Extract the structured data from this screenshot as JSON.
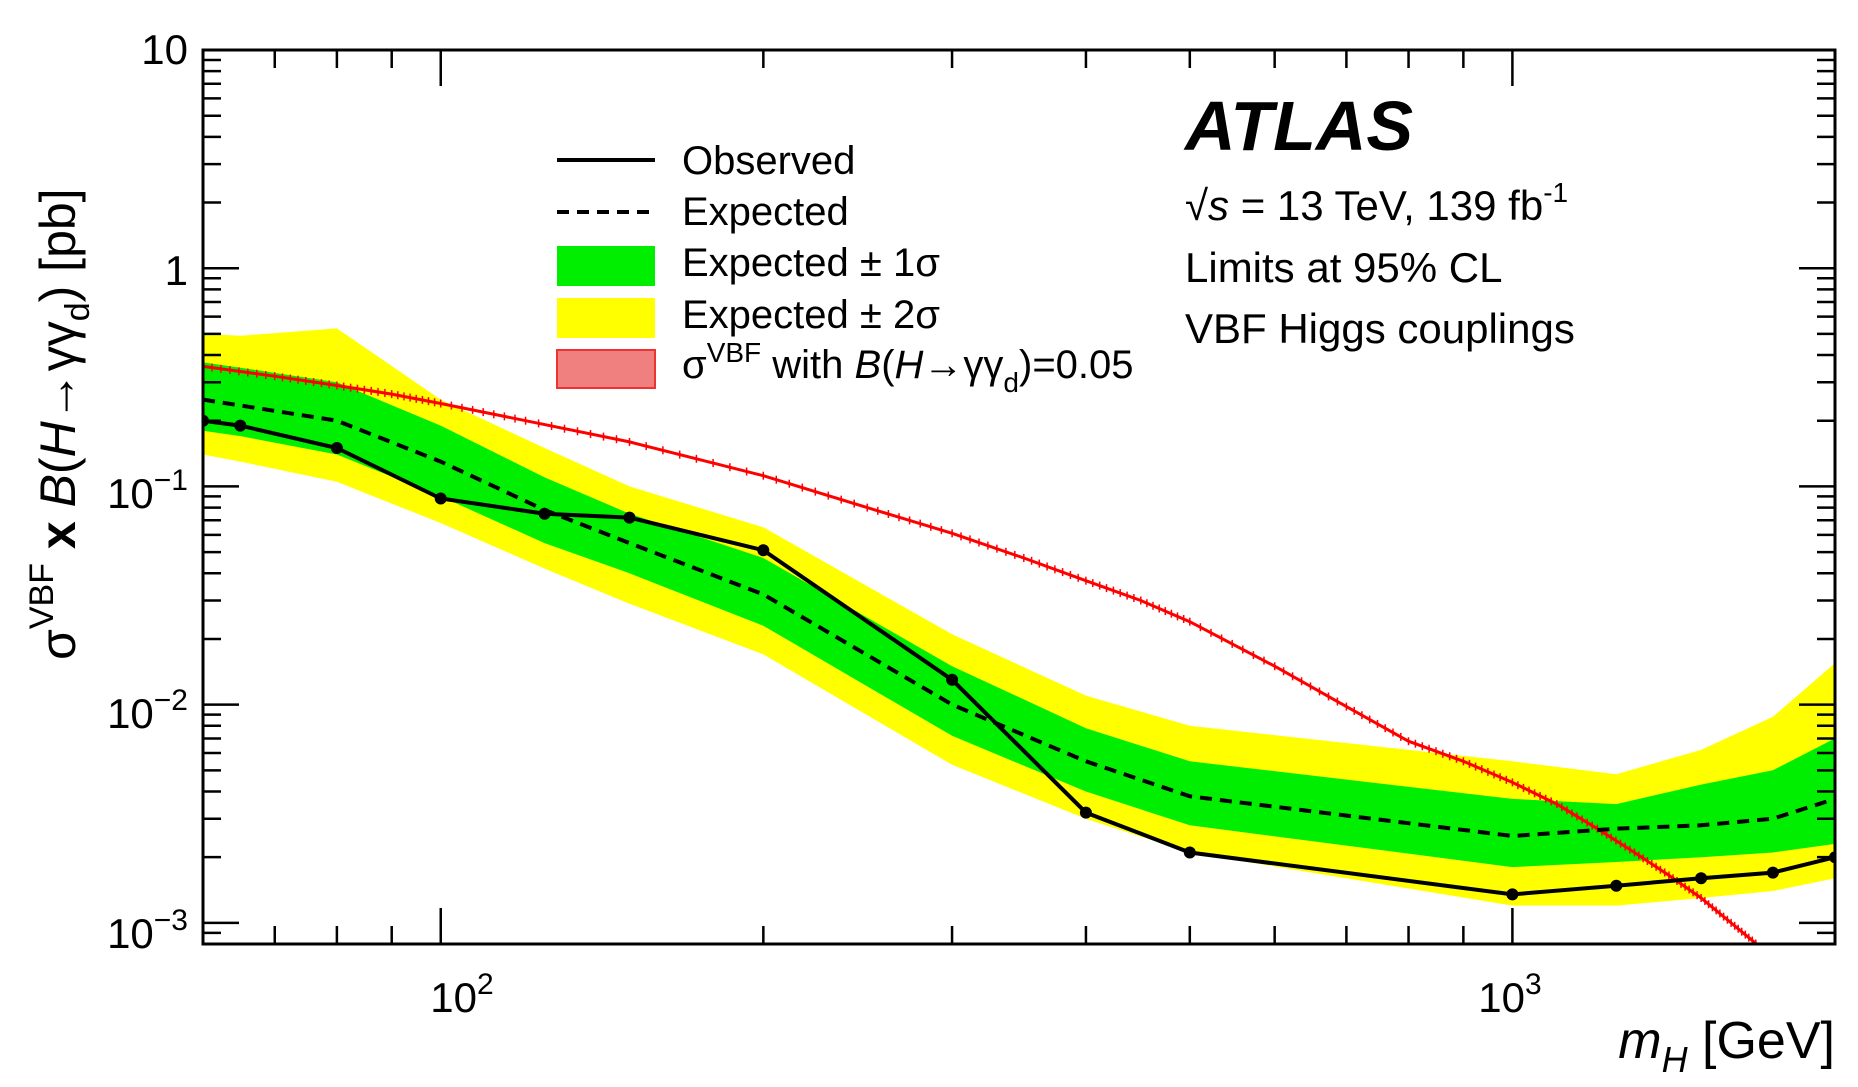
{
  "chart_data": {
    "type": "line",
    "title": "",
    "experiment": "ATLAS",
    "info_lines": {
      "energy_prefix": "√s",
      "energy_text": " = 13 TeV, 139 fb",
      "energy_exp": "-1",
      "line2": "Limits at 95% CL",
      "line3": "VBF Higgs couplings"
    },
    "xlabel": {
      "sym": "m",
      "sub": "H",
      "unit": " [GeV]"
    },
    "ylabel": {
      "sigma": "σ",
      "sup": "VBF",
      "times": " x ",
      "b": "B",
      "paren_open": "(",
      "h": "H",
      "arrow": "→γγ",
      "sub": "d",
      "paren_close": ")",
      "unit": " [pb]"
    },
    "x_scale": "log",
    "y_scale": "log",
    "xlim": [
      60,
      2000
    ],
    "ylim": [
      0.0008,
      10
    ],
    "x_ticks": [
      {
        "value": 100,
        "base": "10",
        "exp": "2"
      },
      {
        "value": 1000,
        "base": "10",
        "exp": "3"
      }
    ],
    "y_ticks": [
      {
        "value": 10,
        "label": "10",
        "exp": ""
      },
      {
        "value": 1,
        "label": "1",
        "exp": ""
      },
      {
        "value": 0.1,
        "label": "10",
        "exp": "−1"
      },
      {
        "value": 0.01,
        "label": "10",
        "exp": "−2"
      },
      {
        "value": 0.001,
        "label": "10",
        "exp": "−3"
      }
    ],
    "legend": {
      "placement": "top-center",
      "entries": [
        {
          "key": "observed",
          "label": "Observed"
        },
        {
          "key": "expected",
          "label": "Expected"
        },
        {
          "key": "band1",
          "label": "Expected ± 1σ"
        },
        {
          "key": "band2",
          "label": "Expected ± 2σ"
        },
        {
          "key": "theory",
          "label_sigma": "σ",
          "label_sup": "VBF",
          "label_mid": " with ",
          "label_b": "B",
          "label_paren": "(",
          "label_h": "H",
          "label_arrow": "→γγ",
          "label_sub": "d",
          "label_end": ")=0.05"
        }
      ]
    },
    "colors": {
      "observed": "#000000",
      "expected": "#000000",
      "band1": "#00ee00",
      "band2": "#ffff00",
      "theory": "#ff0000"
    },
    "series": [
      {
        "name": "Observed",
        "x": [
          60,
          65,
          80,
          100,
          125,
          150,
          200,
          300,
          400,
          500,
          1000,
          1250,
          1500,
          1750,
          2000
        ],
        "y": [
          0.2,
          0.19,
          0.15,
          0.088,
          0.075,
          0.072,
          0.051,
          0.013,
          0.0032,
          0.0021,
          0.00135,
          0.00148,
          0.0016,
          0.0017,
          0.002
        ]
      },
      {
        "name": "Expected",
        "x": [
          60,
          80,
          100,
          125,
          150,
          200,
          300,
          400,
          500,
          1000,
          1250,
          1500,
          1750,
          2000
        ],
        "y": [
          0.25,
          0.2,
          0.13,
          0.078,
          0.055,
          0.032,
          0.01,
          0.0055,
          0.0038,
          0.0025,
          0.0027,
          0.0028,
          0.003,
          0.0037
        ]
      }
    ],
    "bands": [
      {
        "name": "Expected ± 2σ",
        "x": [
          60,
          65,
          80,
          100,
          125,
          150,
          200,
          300,
          400,
          500,
          1000,
          1250,
          1500,
          1750,
          2000
        ],
        "upper": [
          0.5,
          0.49,
          0.53,
          0.25,
          0.15,
          0.1,
          0.065,
          0.021,
          0.011,
          0.008,
          0.0055,
          0.0048,
          0.0062,
          0.0088,
          0.0155
        ],
        "lower": [
          0.14,
          0.13,
          0.105,
          0.068,
          0.042,
          0.029,
          0.017,
          0.0053,
          0.003,
          0.0021,
          0.0012,
          0.0012,
          0.0013,
          0.0014,
          0.0016
        ]
      },
      {
        "name": "Expected ± 1σ",
        "x": [
          60,
          65,
          80,
          100,
          125,
          150,
          200,
          300,
          400,
          500,
          1000,
          1250,
          1500,
          1750,
          2000
        ],
        "upper": [
          0.37,
          0.35,
          0.3,
          0.19,
          0.11,
          0.075,
          0.047,
          0.015,
          0.0078,
          0.0055,
          0.0037,
          0.0035,
          0.0043,
          0.005,
          0.007
        ],
        "lower": [
          0.18,
          0.17,
          0.14,
          0.09,
          0.055,
          0.04,
          0.023,
          0.0072,
          0.004,
          0.0028,
          0.0018,
          0.0019,
          0.002,
          0.0021,
          0.0023
        ]
      }
    ],
    "theory_curve": {
      "name": "σ(VBF) with B(H→γγd)=0.05",
      "x": [
        60,
        70,
        80,
        90,
        100,
        120,
        150,
        200,
        250,
        300,
        350,
        400,
        450,
        500,
        600,
        700,
        800,
        900,
        1000,
        1100,
        1200,
        1300,
        1400,
        1500,
        1600,
        1700
      ],
      "y": [
        0.355,
        0.32,
        0.29,
        0.265,
        0.24,
        0.2,
        0.16,
        0.112,
        0.08,
        0.061,
        0.047,
        0.037,
        0.03,
        0.024,
        0.015,
        0.0098,
        0.0068,
        0.0055,
        0.0044,
        0.0035,
        0.0027,
        0.0021,
        0.00165,
        0.0013,
        0.001,
        0.00078
      ]
    }
  }
}
